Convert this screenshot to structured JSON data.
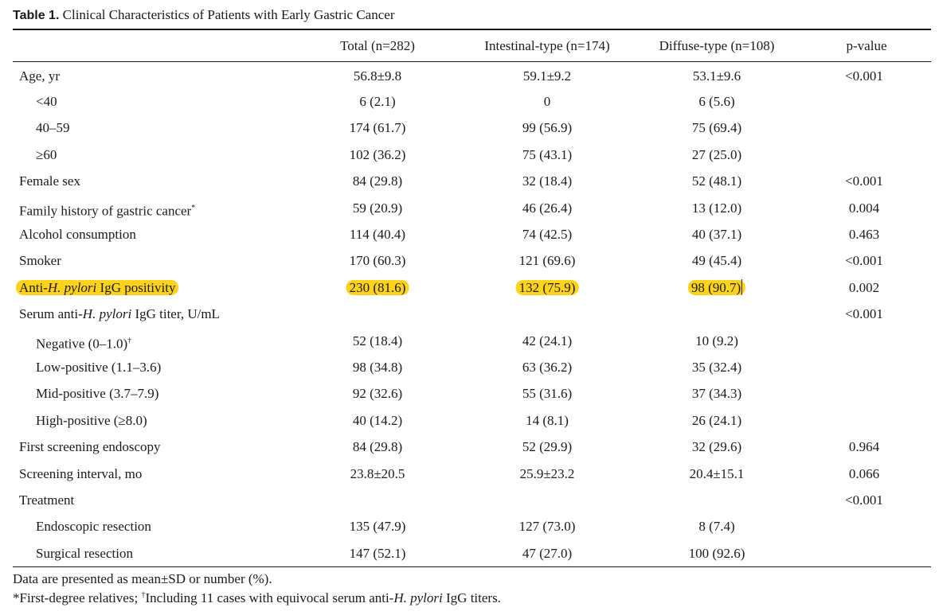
{
  "caption": {
    "label": "Table 1.",
    "title": "Clinical Characteristics of Patients with Early Gastric Cancer"
  },
  "headers": {
    "col1": "Total (n=282)",
    "col2": "Intestinal-type (n=174)",
    "col3": "Diffuse-type (n=108)",
    "col4": "p-value"
  },
  "rows": [
    {
      "label": "Age, yr",
      "total": "56.8±9.8",
      "intestinal": "59.1±9.2",
      "diffuse": "53.1±9.6",
      "p": "<0.001"
    },
    {
      "label": "<40",
      "total": "6 (2.1)",
      "intestinal": "0",
      "diffuse": "6 (5.6)",
      "p": ""
    },
    {
      "label": "40–59",
      "total": "174 (61.7)",
      "intestinal": "99 (56.9)",
      "diffuse": "75 (69.4)",
      "p": ""
    },
    {
      "label": "≥60",
      "total": "102 (36.2)",
      "intestinal": "75 (43.1)",
      "diffuse": "27 (25.0)",
      "p": ""
    },
    {
      "label": "Female sex",
      "total": "84 (29.8)",
      "intestinal": "32 (18.4)",
      "diffuse": "52 (48.1)",
      "p": "<0.001"
    },
    {
      "label": "Family history of gastric cancer",
      "label_mark": "*",
      "total": "59 (20.9)",
      "intestinal": "46 (26.4)",
      "diffuse": "13 (12.0)",
      "p": "0.004"
    },
    {
      "label": "Alcohol consumption",
      "total": "114 (40.4)",
      "intestinal": "74 (42.5)",
      "diffuse": "40 (37.1)",
      "p": "0.463"
    },
    {
      "label": "Smoker",
      "total": "170 (60.3)",
      "intestinal": "121 (69.6)",
      "diffuse": "49 (45.4)",
      "p": "<0.001"
    },
    {
      "label_pre": "Anti-",
      "label_em": "H. pylori",
      "label_post": " IgG positivity",
      "total": "230 (81.6)",
      "intestinal": "132 (75.9)",
      "diffuse": "98 (90.7)",
      "p": "0.002"
    },
    {
      "label_pre": "Serum anti-",
      "label_em": "H. pylori",
      "label_post": " IgG titer, U/mL",
      "total": "",
      "intestinal": "",
      "diffuse": "",
      "p": "<0.001"
    },
    {
      "label": "Negative (0–1.0)",
      "label_mark": "†",
      "total": "52 (18.4)",
      "intestinal": "42 (24.1)",
      "diffuse": "10 (9.2)",
      "p": ""
    },
    {
      "label": "Low-positive (1.1–3.6)",
      "total": "98 (34.8)",
      "intestinal": "63 (36.2)",
      "diffuse": "35 (32.4)",
      "p": ""
    },
    {
      "label": "Mid-positive (3.7–7.9)",
      "total": "92 (32.6)",
      "intestinal": "55 (31.6)",
      "diffuse": "37 (34.3)",
      "p": ""
    },
    {
      "label": "High-positive (≥8.0)",
      "total": "40 (14.2)",
      "intestinal": "14 (8.1)",
      "diffuse": "26 (24.1)",
      "p": ""
    },
    {
      "label": "First screening endoscopy",
      "total": "84 (29.8)",
      "intestinal": "52 (29.9)",
      "diffuse": "32 (29.6)",
      "p": "0.964"
    },
    {
      "label": "Screening interval, mo",
      "total": "23.8±20.5",
      "intestinal": "25.9±23.2",
      "diffuse": "20.4±15.1",
      "p": "0.066"
    },
    {
      "label": "Treatment",
      "total": "",
      "intestinal": "",
      "diffuse": "",
      "p": "<0.001"
    },
    {
      "label": "Endoscopic resection",
      "total": "135 (47.9)",
      "intestinal": "127 (73.0)",
      "diffuse": "8 (7.4)",
      "p": ""
    },
    {
      "label": "Surgical resection",
      "total": "147 (52.1)",
      "intestinal": "47 (27.0)",
      "diffuse": "100 (92.6)",
      "p": ""
    }
  ],
  "notes": {
    "line1": "Data are presented as mean±SD or number (%).",
    "line2_a": "*First-degree relatives; ",
    "line2_mark": "†",
    "line2_b": "Including 11 cases with equivocal serum anti-",
    "line2_em": "H. pylori",
    "line2_c": " IgG titers."
  },
  "highlight_color": "#ffd31a"
}
